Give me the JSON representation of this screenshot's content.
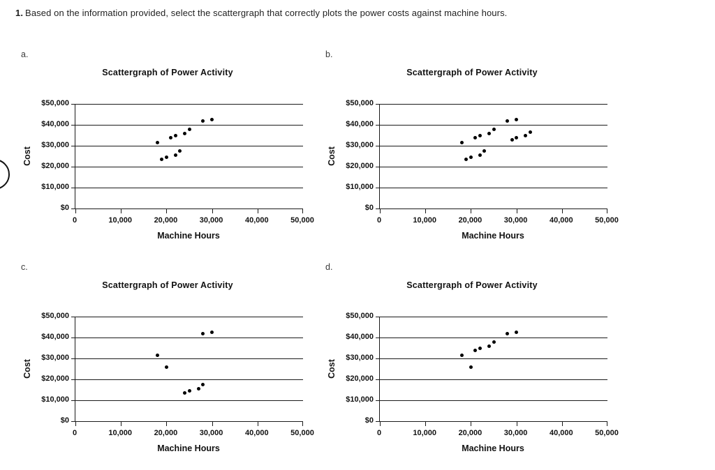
{
  "colors": {
    "background": "#ffffff",
    "ink": "#000000",
    "text": "#1f1f1f"
  },
  "question": {
    "number": "1.",
    "text": "Based on the information provided, select the scattergraph that correctly plots the power costs against machine hours."
  },
  "chart_data": [
    {
      "type": "scatter",
      "option_label": "a.",
      "title": "Scattergraph of Power Activity",
      "xlabel": "Machine Hours",
      "ylabel": "Cost",
      "xlim": [
        0,
        50000
      ],
      "ylim": [
        0,
        50000
      ],
      "grid": true,
      "xticks": [
        0,
        10000,
        20000,
        30000,
        40000,
        50000
      ],
      "xtick_labels": [
        "0",
        "10,000",
        "20,000",
        "30,000",
        "40,000",
        "50,000"
      ],
      "yticks": [
        0,
        10000,
        20000,
        30000,
        40000,
        50000
      ],
      "ytick_labels": [
        "$0",
        "$10,000",
        "$20,000",
        "$30,000",
        "$40,000",
        "$50,000"
      ],
      "points": [
        [
          18000,
          31500
        ],
        [
          19000,
          23500
        ],
        [
          20000,
          24500
        ],
        [
          21000,
          34000
        ],
        [
          22000,
          25500
        ],
        [
          22000,
          35000
        ],
        [
          23000,
          27500
        ],
        [
          24000,
          36000
        ],
        [
          25000,
          38000
        ],
        [
          28000,
          42000
        ],
        [
          30000,
          42500
        ]
      ]
    },
    {
      "type": "scatter",
      "option_label": "b.",
      "title": "Scattergraph of Power Activity",
      "xlabel": "Machine Hours",
      "ylabel": "Cost",
      "xlim": [
        0,
        50000
      ],
      "ylim": [
        0,
        50000
      ],
      "grid": true,
      "xticks": [
        0,
        10000,
        20000,
        30000,
        40000,
        50000
      ],
      "xtick_labels": [
        "0",
        "10,000",
        "20,000",
        "30,000",
        "40,000",
        "50,000"
      ],
      "yticks": [
        0,
        10000,
        20000,
        30000,
        40000,
        50000
      ],
      "ytick_labels": [
        "$0",
        "$10,000",
        "$20,000",
        "$30,000",
        "$40,000",
        "$50,000"
      ],
      "points": [
        [
          18000,
          31500
        ],
        [
          19000,
          23500
        ],
        [
          20000,
          24500
        ],
        [
          21000,
          34000
        ],
        [
          22000,
          25500
        ],
        [
          22000,
          35000
        ],
        [
          23000,
          27500
        ],
        [
          24000,
          36000
        ],
        [
          25000,
          38000
        ],
        [
          28000,
          42000
        ],
        [
          29000,
          33000
        ],
        [
          30000,
          34000
        ],
        [
          30000,
          42500
        ],
        [
          32000,
          35000
        ],
        [
          33000,
          36500
        ]
      ]
    },
    {
      "type": "scatter",
      "option_label": "c.",
      "title": "Scattergraph of Power Activity",
      "xlabel": "Machine Hours",
      "ylabel": "Cost",
      "xlim": [
        0,
        50000
      ],
      "ylim": [
        0,
        50000
      ],
      "grid": true,
      "xticks": [
        0,
        10000,
        20000,
        30000,
        40000,
        50000
      ],
      "xtick_labels": [
        "0",
        "10,000",
        "20,000",
        "30,000",
        "40,000",
        "50,000"
      ],
      "yticks": [
        0,
        10000,
        20000,
        30000,
        40000,
        50000
      ],
      "ytick_labels": [
        "$0",
        "$10,000",
        "$20,000",
        "$30,000",
        "$40,000",
        "$50,000"
      ],
      "points": [
        [
          18000,
          31500
        ],
        [
          20000,
          26000
        ],
        [
          24000,
          13500
        ],
        [
          25000,
          14500
        ],
        [
          27000,
          15500
        ],
        [
          28000,
          17500
        ],
        [
          28000,
          42000
        ],
        [
          30000,
          42500
        ]
      ]
    },
    {
      "type": "scatter",
      "option_label": "d.",
      "title": "Scattergraph of Power Activity",
      "xlabel": "Machine Hours",
      "ylabel": "Cost",
      "xlim": [
        0,
        50000
      ],
      "ylim": [
        0,
        50000
      ],
      "grid": true,
      "xticks": [
        0,
        10000,
        20000,
        30000,
        40000,
        50000
      ],
      "xtick_labels": [
        "0",
        "10,000",
        "20,000",
        "30,000",
        "40,000",
        "50,000"
      ],
      "yticks": [
        0,
        10000,
        20000,
        30000,
        40000,
        50000
      ],
      "ytick_labels": [
        "$0",
        "$10,000",
        "$20,000",
        "$30,000",
        "$40,000",
        "$50,000"
      ],
      "points": [
        [
          18000,
          31500
        ],
        [
          20000,
          26000
        ],
        [
          21000,
          34000
        ],
        [
          22000,
          35000
        ],
        [
          24000,
          36000
        ],
        [
          25000,
          38000
        ],
        [
          28000,
          42000
        ],
        [
          30000,
          42500
        ]
      ]
    }
  ]
}
